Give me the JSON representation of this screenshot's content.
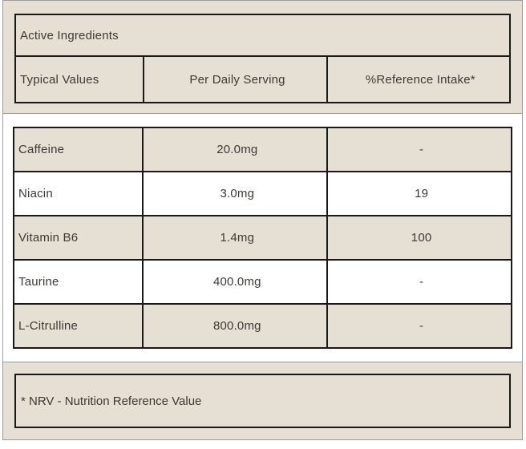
{
  "colors": {
    "beige": "#e6dfd3",
    "white": "#ffffff",
    "border_dark": "#191919",
    "border_gray": "#9b9b9b",
    "text": "#3d3935"
  },
  "header": {
    "title": "Active Ingredients",
    "columns": [
      "Typical Values",
      "Per Daily Serving",
      "%Reference Intake*"
    ]
  },
  "ingredients": [
    {
      "name": "Caffeine",
      "per_serving": "20.0mg",
      "reference_intake": "-"
    },
    {
      "name": "Niacin",
      "per_serving": "3.0mg",
      "reference_intake": "19"
    },
    {
      "name": "Vitamin B6",
      "per_serving": "1.4mg",
      "reference_intake": "100"
    },
    {
      "name": "Taurine",
      "per_serving": "400.0mg",
      "reference_intake": "-"
    },
    {
      "name": "L-Citrulline",
      "per_serving": "800.0mg",
      "reference_intake": "-"
    }
  ],
  "footnote": "* NRV - Nutrition Reference Value"
}
